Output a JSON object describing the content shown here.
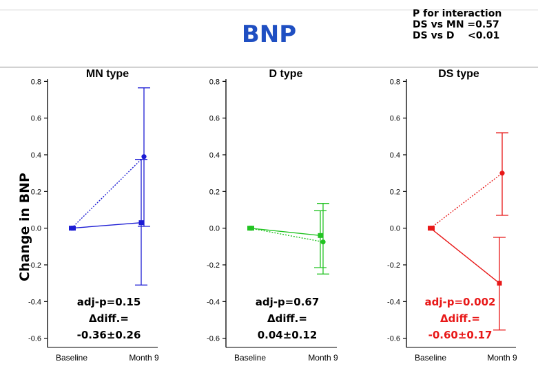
{
  "header": {
    "title": "BNP",
    "interaction_lines": [
      "P for interaction",
      "DS vs MN =0.57",
      "DS vs D    <0.01"
    ]
  },
  "y_axis_label": "Change in BNP",
  "colors": {
    "title": "#1f4fc2",
    "MN": "#1c1cd4",
    "D": "#22c322",
    "DS": "#e81818",
    "text": "#000000"
  },
  "chart_data": [
    {
      "type": "line",
      "title": "MN type",
      "color": "#1c1cd4",
      "categories": [
        "Baseline",
        "Month 9"
      ],
      "ylim": [
        -0.65,
        0.85
      ],
      "yticks": [
        "0.8",
        "0.6",
        "0.4",
        "0.2",
        "0.0",
        "-0.2",
        "-0.4",
        "-0.6"
      ],
      "series": [
        {
          "style": "solid",
          "values": [
            0.0,
            0.03
          ],
          "error_upper": [
            0.0,
            0.375
          ],
          "error_lower": [
            0.0,
            -0.31
          ]
        },
        {
          "style": "dotted",
          "values": [
            0.0,
            0.39
          ],
          "error_upper": [
            0.0,
            0.765
          ],
          "error_lower": [
            0.0,
            0.01
          ]
        }
      ],
      "annotation": [
        "adj-p=0.15",
        "Δdiff.=",
        "-0.36±0.26"
      ],
      "annotation_color": "#000000"
    },
    {
      "type": "line",
      "title": "D type",
      "color": "#22c322",
      "categories": [
        "Baseline",
        "Month 9"
      ],
      "ylim": [
        -0.65,
        0.85
      ],
      "yticks": [
        "0.8",
        "0.6",
        "0.4",
        "0.2",
        "0.0",
        "-0.2",
        "-0.4",
        "-0.6"
      ],
      "series": [
        {
          "style": "solid",
          "values": [
            0.0,
            -0.04
          ],
          "error_upper": [
            0.0,
            0.095
          ],
          "error_lower": [
            0.0,
            -0.215
          ]
        },
        {
          "style": "dotted",
          "values": [
            0.0,
            -0.075
          ],
          "error_upper": [
            0.0,
            0.135
          ],
          "error_lower": [
            0.0,
            -0.25
          ]
        }
      ],
      "annotation": [
        "adj-p=0.67",
        "Δdiff.=",
        "0.04±0.12"
      ],
      "annotation_color": "#000000"
    },
    {
      "type": "line",
      "title": "DS type",
      "color": "#e81818",
      "categories": [
        "Baseline",
        "Month 9"
      ],
      "ylim": [
        -0.65,
        0.85
      ],
      "yticks": [
        "0.8",
        "0.6",
        "0.4",
        "0.2",
        "0.0",
        "-0.2",
        "-0.4",
        "-0.6"
      ],
      "series": [
        {
          "style": "solid",
          "values": [
            0.0,
            -0.3
          ],
          "error_upper": [
            0.0,
            -0.05
          ],
          "error_lower": [
            0.0,
            -0.555
          ]
        },
        {
          "style": "dotted",
          "values": [
            0.0,
            0.3
          ],
          "error_upper": [
            0.0,
            0.52
          ],
          "error_lower": [
            0.0,
            0.07
          ]
        }
      ],
      "annotation": [
        "adj-p=0.002",
        "Δdiff.=",
        "-0.60±0.17"
      ],
      "annotation_color": "#e81818"
    }
  ]
}
